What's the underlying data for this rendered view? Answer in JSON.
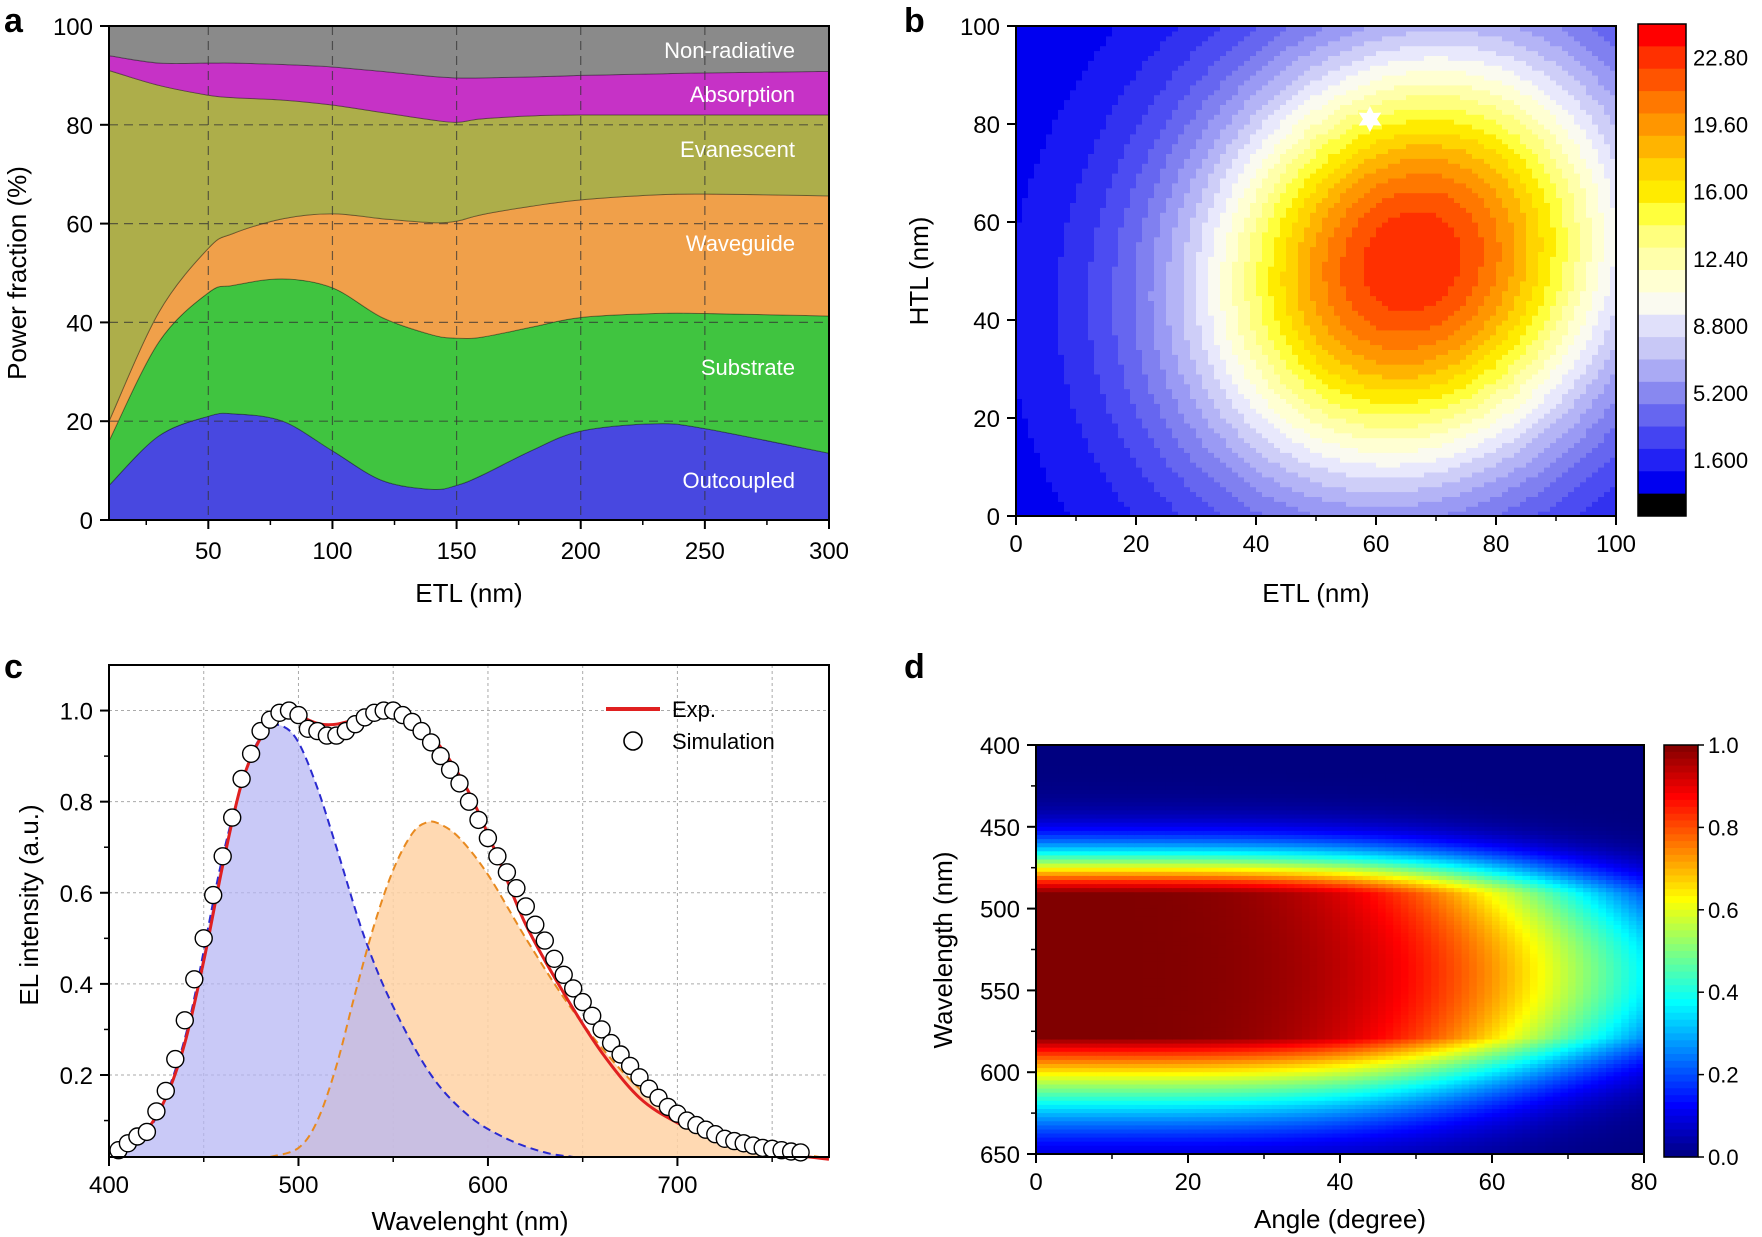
{
  "colors": {
    "nonrad": "#8a8a8a",
    "absorption": "#c632c6",
    "evanescent": "#adae4a",
    "waveguide": "#f0a04a",
    "substrate": "#40c440",
    "outcoupled": "#4848e0",
    "exp": "#e02020",
    "blue_dash": "#2a2ad0",
    "orange_dash": "#e88a20",
    "blue_fill": "#b4b4f4",
    "orange_fill": "#ffd2a4"
  },
  "panels": {
    "a": {
      "label": "a"
    },
    "b": {
      "label": "b"
    },
    "c": {
      "label": "c"
    },
    "d": {
      "label": "d"
    }
  },
  "chart_data": [
    {
      "id": "a",
      "type": "area",
      "title": "",
      "xlabel": "ETL (nm)",
      "ylabel": "Power fraction (%)",
      "xlim": [
        10,
        300
      ],
      "ylim": [
        0,
        100
      ],
      "xticks": [
        50,
        100,
        150,
        200,
        250,
        300
      ],
      "yticks": [
        0,
        20,
        40,
        60,
        80,
        100
      ],
      "x": [
        10,
        30,
        50,
        60,
        80,
        100,
        120,
        140,
        150,
        160,
        180,
        200,
        230,
        250,
        300
      ],
      "boundaries": {
        "outcoupled": [
          7,
          17,
          21,
          21.5,
          20,
          14,
          8,
          6.2,
          7,
          9,
          14,
          18,
          19.5,
          18.5,
          13.5
        ],
        "substrate": [
          16,
          36,
          46,
          47.5,
          48.8,
          47,
          41,
          37.5,
          36.8,
          37,
          39,
          41,
          41.8,
          41.8,
          41.3
        ],
        "waveguide": [
          20,
          42,
          55,
          58,
          61,
          62,
          61,
          60.2,
          60.5,
          61.8,
          63.5,
          64.8,
          65.8,
          66,
          65.6
        ],
        "evanescent": [
          91,
          88,
          86,
          85.5,
          85,
          84,
          82.5,
          81,
          80.5,
          81.2,
          81.8,
          82,
          82,
          82,
          82
        ],
        "absorption": [
          94,
          92.5,
          92.5,
          92.5,
          92.2,
          91.7,
          90.8,
          89.8,
          89.5,
          89.5,
          89.7,
          90,
          90.3,
          90.5,
          90.8
        ],
        "nonradiative": [
          100,
          100,
          100,
          100,
          100,
          100,
          100,
          100,
          100,
          100,
          100,
          100,
          100,
          100,
          100
        ]
      },
      "series_labels": [
        "Non-radiative",
        "Absorption",
        "Evanescent",
        "Waveguide",
        "Substrate",
        "Outcoupled"
      ],
      "grid": true
    },
    {
      "id": "b",
      "type": "heatmap",
      "xlabel": "ETL (nm)",
      "ylabel": "HTL (nm)",
      "xlim": [
        0,
        100
      ],
      "ylim": [
        0,
        100
      ],
      "xticks": [
        0,
        20,
        40,
        60,
        80,
        100
      ],
      "yticks": [
        0,
        20,
        40,
        60,
        80,
        100
      ],
      "colorbar_ticks": [
        "22.80",
        "19.60",
        "16.00",
        "12.40",
        "8.800",
        "5.200",
        "1.600"
      ],
      "levels": [
        1.6,
        3.4,
        5.2,
        7.0,
        8.8,
        10.6,
        12.4,
        14.2,
        16.0,
        17.8,
        19.6,
        21.2,
        22.8,
        24.0
      ],
      "peak": {
        "etl": 66,
        "htl": 52,
        "value": 23.5
      },
      "marker": {
        "etl": 59,
        "htl": 81
      }
    },
    {
      "id": "c",
      "type": "line",
      "xlabel": "Wavelenght (nm)",
      "ylabel": "EL intensity (a.u.)",
      "xlim": [
        400,
        780
      ],
      "ylim": [
        0.02,
        1.1
      ],
      "xticks": [
        400,
        500,
        600,
        700
      ],
      "yticks": [
        0.2,
        0.4,
        0.6,
        0.8,
        1.0
      ],
      "ytick_labels": [
        "0.2",
        "0.4",
        "0.6",
        "0.8",
        "1.0"
      ],
      "legend": [
        "Exp.",
        "Simulation"
      ],
      "legend_position": "top-right",
      "exp": {
        "x": [
          403,
          410,
          420,
          430,
          440,
          450,
          460,
          470,
          480,
          490,
          497,
          505,
          512,
          520,
          530,
          540,
          548,
          555,
          565,
          575,
          590,
          605,
          620,
          640,
          660,
          680,
          700,
          720,
          740,
          760,
          780
        ],
        "y": [
          0.03,
          0.05,
          0.08,
          0.15,
          0.27,
          0.45,
          0.66,
          0.84,
          0.94,
          0.99,
          1.0,
          0.98,
          0.97,
          0.97,
          0.98,
          0.99,
          1.0,
          0.99,
          0.96,
          0.92,
          0.82,
          0.68,
          0.53,
          0.38,
          0.25,
          0.15,
          0.095,
          0.06,
          0.04,
          0.025,
          0.015
        ]
      },
      "simulation": {
        "x": [
          405,
          410,
          415,
          420,
          425,
          430,
          435,
          440,
          445,
          450,
          455,
          460,
          465,
          470,
          475,
          480,
          485,
          490,
          495,
          500,
          505,
          510,
          515,
          520,
          525,
          530,
          535,
          540,
          545,
          550,
          555,
          560,
          565,
          570,
          575,
          580,
          585,
          590,
          595,
          600,
          605,
          610,
          615,
          620,
          625,
          630,
          635,
          640,
          645,
          650,
          655,
          660,
          665,
          670,
          675,
          680,
          685,
          690,
          695,
          700,
          705,
          710,
          715,
          720,
          725,
          730,
          735,
          740,
          745,
          750,
          755,
          760,
          765
        ],
        "y": [
          0.035,
          0.05,
          0.065,
          0.075,
          0.12,
          0.165,
          0.235,
          0.32,
          0.41,
          0.5,
          0.595,
          0.68,
          0.765,
          0.85,
          0.905,
          0.955,
          0.98,
          0.995,
          1.0,
          0.99,
          0.96,
          0.955,
          0.945,
          0.945,
          0.955,
          0.97,
          0.985,
          0.995,
          1.0,
          1.0,
          0.99,
          0.975,
          0.955,
          0.93,
          0.9,
          0.87,
          0.84,
          0.8,
          0.76,
          0.72,
          0.68,
          0.645,
          0.61,
          0.57,
          0.53,
          0.495,
          0.455,
          0.42,
          0.39,
          0.36,
          0.33,
          0.3,
          0.27,
          0.245,
          0.22,
          0.195,
          0.17,
          0.15,
          0.13,
          0.115,
          0.1,
          0.09,
          0.08,
          0.07,
          0.06,
          0.055,
          0.05,
          0.045,
          0.04,
          0.038,
          0.035,
          0.032,
          0.03
        ]
      },
      "blue_component": {
        "x": [
          403,
          420,
          440,
          460,
          475,
          485,
          492,
          500,
          510,
          520,
          535,
          550,
          570,
          590,
          610,
          630,
          645
        ],
        "y": [
          0.03,
          0.07,
          0.28,
          0.68,
          0.9,
          0.96,
          0.965,
          0.93,
          0.83,
          0.7,
          0.5,
          0.35,
          0.2,
          0.11,
          0.06,
          0.03,
          0.02
        ]
      },
      "orange_component": {
        "x": [
          485,
          500,
          510,
          520,
          530,
          540,
          550,
          560,
          568,
          575,
          585,
          600,
          620,
          640,
          660,
          680,
          700,
          720,
          740,
          760,
          775
        ],
        "y": [
          0.02,
          0.04,
          0.1,
          0.22,
          0.38,
          0.53,
          0.65,
          0.73,
          0.755,
          0.75,
          0.72,
          0.64,
          0.5,
          0.37,
          0.26,
          0.17,
          0.11,
          0.07,
          0.045,
          0.03,
          0.02
        ]
      },
      "grid": true
    },
    {
      "id": "d",
      "type": "heatmap",
      "xlabel": "Angle (degree)",
      "ylabel": "Wavelength (nm)",
      "xlim": [
        0,
        80
      ],
      "ylim": [
        400,
        650
      ],
      "xticks": [
        0,
        20,
        40,
        60,
        80
      ],
      "yticks": [
        400,
        450,
        500,
        550,
        600,
        650
      ],
      "colorbar_ticks": [
        "1.0",
        "0.8",
        "0.6",
        "0.4",
        "0.2",
        "0.0"
      ],
      "peaks_nm": [
        497,
        548
      ],
      "colormap": "jet"
    }
  ]
}
